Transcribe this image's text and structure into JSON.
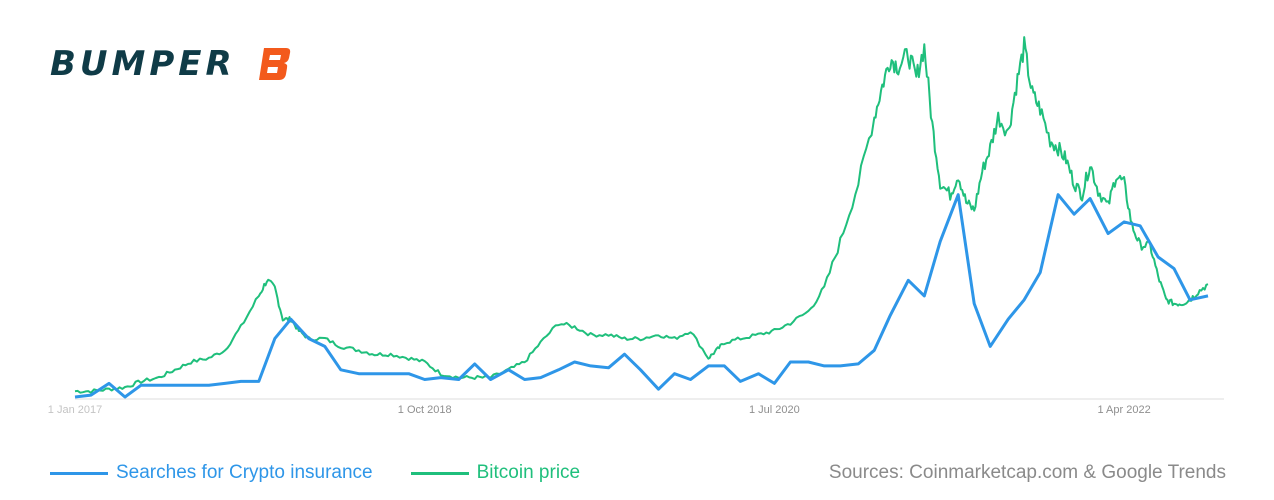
{
  "brand": {
    "name": "BUMPER",
    "accent_color": "#f35a1c",
    "text_color": "#0f3b47",
    "logo_icon": "bumper-b-logo-icon"
  },
  "source_text": "Sources: Coinmarketcap.com & Google Trends",
  "chart_data": {
    "type": "line",
    "title": "",
    "xlabel": "",
    "ylabel": "",
    "x_ticks": [
      {
        "label": "1 Jan 2017",
        "t": 2017.0
      },
      {
        "label": "1 Oct 2018",
        "t": 2018.75
      },
      {
        "label": "1 Jul 2020",
        "t": 2020.5
      },
      {
        "label": "1 Apr 2022",
        "t": 2022.25
      }
    ],
    "x_range": [
      2017.0,
      2022.75
    ],
    "y_range": [
      0,
      100
    ],
    "grid": false,
    "legend_position": "bottom-left",
    "series": [
      {
        "name": "Searches for Crypto insurance",
        "color": "#2e96e8",
        "t": [
          2017.0,
          2017.08,
          2017.17,
          2017.25,
          2017.33,
          2017.42,
          2017.5,
          2017.58,
          2017.67,
          2017.75,
          2017.83,
          2017.92,
          2018.0,
          2018.08,
          2018.17,
          2018.25,
          2018.33,
          2018.42,
          2018.5,
          2018.58,
          2018.67,
          2018.75,
          2018.83,
          2018.92,
          2019.0,
          2019.08,
          2019.17,
          2019.25,
          2019.33,
          2019.42,
          2019.5,
          2019.58,
          2019.67,
          2019.75,
          2019.83,
          2019.92,
          2020.0,
          2020.08,
          2020.17,
          2020.25,
          2020.33,
          2020.42,
          2020.5,
          2020.58,
          2020.67,
          2020.75,
          2020.83,
          2020.92,
          2021.0,
          2021.08,
          2021.17,
          2021.25,
          2021.33,
          2021.42,
          2021.5,
          2021.58,
          2021.67,
          2021.75,
          2021.83,
          2021.92,
          2022.0,
          2022.08,
          2022.17,
          2022.25,
          2022.33,
          2022.42,
          2022.5,
          2022.58,
          2022.67
        ],
        "values": [
          0,
          0.5,
          3.5,
          0,
          3,
          3,
          3,
          3,
          3,
          3.5,
          4,
          4,
          15,
          20,
          15,
          13,
          7,
          6,
          6,
          6,
          6,
          4.5,
          5,
          4.5,
          8.5,
          4.5,
          7,
          4.5,
          5,
          7,
          9,
          8,
          7.5,
          11,
          7,
          2,
          6,
          4.5,
          8,
          8,
          4,
          6,
          3.5,
          9,
          9,
          8,
          8,
          8.5,
          12,
          21,
          30,
          26,
          40,
          52,
          24,
          13,
          20,
          25,
          32,
          52,
          47,
          51,
          42,
          45,
          44,
          36,
          33,
          25,
          26
        ]
      },
      {
        "name": "Bitcoin price",
        "color": "#1fbf7c",
        "t": [
          2017.0,
          2017.08,
          2017.17,
          2017.25,
          2017.33,
          2017.42,
          2017.5,
          2017.58,
          2017.67,
          2017.75,
          2017.83,
          2017.92,
          2017.96,
          2018.0,
          2018.04,
          2018.08,
          2018.12,
          2018.17,
          2018.25,
          2018.33,
          2018.42,
          2018.5,
          2018.58,
          2018.67,
          2018.75,
          2018.83,
          2018.92,
          2019.0,
          2019.08,
          2019.17,
          2019.25,
          2019.33,
          2019.42,
          2019.5,
          2019.58,
          2019.67,
          2019.75,
          2019.83,
          2019.92,
          2020.0,
          2020.08,
          2020.17,
          2020.21,
          2020.25,
          2020.33,
          2020.42,
          2020.5,
          2020.58,
          2020.67,
          2020.75,
          2020.83,
          2020.92,
          2021.0,
          2021.04,
          2021.08,
          2021.12,
          2021.17,
          2021.21,
          2021.25,
          2021.29,
          2021.33,
          2021.38,
          2021.42,
          2021.46,
          2021.5,
          2021.54,
          2021.58,
          2021.62,
          2021.67,
          2021.71,
          2021.75,
          2021.79,
          2021.83,
          2021.88,
          2021.92,
          2021.96,
          2022.0,
          2022.04,
          2022.08,
          2022.12,
          2022.17,
          2022.21,
          2022.25,
          2022.29,
          2022.33,
          2022.38,
          2022.42,
          2022.46,
          2022.5,
          2022.54,
          2022.58,
          2022.62,
          2022.67
        ],
        "values": [
          1.5,
          1.5,
          2,
          2.5,
          4,
          5,
          7,
          9,
          10,
          12,
          18,
          26,
          30,
          28,
          20,
          20,
          17,
          15,
          15,
          13,
          12,
          11,
          11,
          10,
          9,
          6,
          5,
          5,
          5,
          7,
          9,
          14,
          19,
          18,
          16,
          16,
          15,
          15,
          16,
          15,
          17,
          10,
          12,
          14,
          15,
          16,
          17,
          19,
          22,
          28,
          40,
          55,
          72,
          80,
          87,
          85,
          88,
          82,
          90,
          70,
          55,
          52,
          57,
          50,
          48,
          58,
          64,
          72,
          68,
          80,
          90,
          78,
          74,
          66,
          64,
          61,
          55,
          52,
          60,
          53,
          49,
          57,
          55,
          44,
          39,
          39,
          31,
          25,
          24,
          24,
          25,
          27,
          29
        ]
      }
    ]
  }
}
